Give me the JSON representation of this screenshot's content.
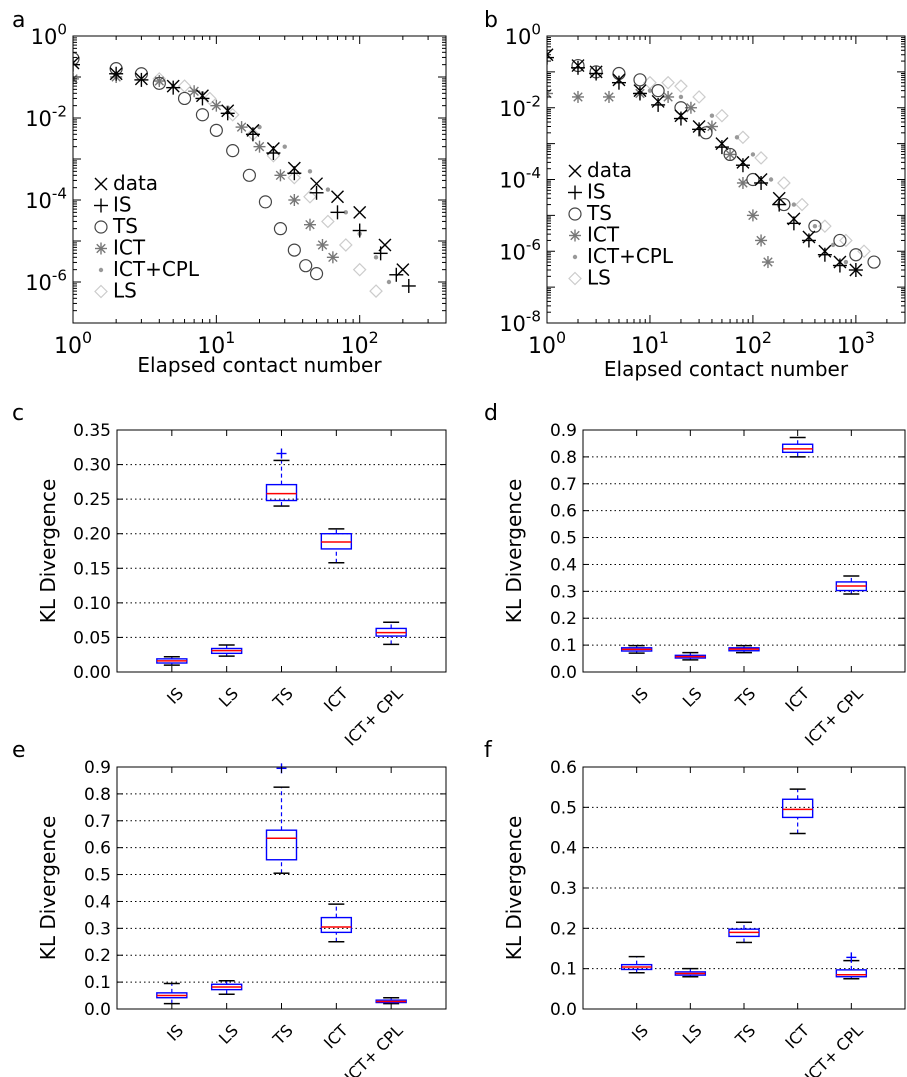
{
  "panel_letters": [
    "a",
    "b",
    "c",
    "d",
    "e",
    "f"
  ],
  "colors": {
    "data": "#000000",
    "IS": "#000000",
    "TS": "#444444",
    "ICT": "#777777",
    "ICT+CPL": "#999999",
    "LS": "#cccccc",
    "box": "#0000ff",
    "median": "#ff0000",
    "grid": "#000000"
  },
  "chart_data": [
    {
      "id": "a",
      "type": "scatter",
      "xlabel": "Elapsed contact number",
      "ylabel": "",
      "xscale": "log",
      "yscale": "log",
      "xlim": [
        1,
        400
      ],
      "ylim": [
        1e-07,
        1
      ],
      "xticks": [
        {
          "value": 1,
          "base": "10",
          "exp": "0"
        },
        {
          "value": 10,
          "base": "10",
          "exp": "1"
        },
        {
          "value": 100,
          "base": "10",
          "exp": "2"
        }
      ],
      "yticks": [
        {
          "value": 1,
          "base": "10",
          "exp": "0"
        },
        {
          "value": 0.01,
          "base": "10",
          "exp": "-2"
        },
        {
          "value": 0.0001,
          "base": "10",
          "exp": "-4"
        },
        {
          "value": 1e-06,
          "base": "10",
          "exp": "-6"
        }
      ],
      "legend_position": "bottom-left",
      "legend": [
        {
          "label": "data",
          "marker": "x"
        },
        {
          "label": "IS",
          "marker": "+"
        },
        {
          "label": "TS",
          "marker": "circle"
        },
        {
          "label": "ICT",
          "marker": "star"
        },
        {
          "label": "ICT+CPL",
          "marker": "dot"
        },
        {
          "label": "LS",
          "marker": "diamond"
        }
      ],
      "series": [
        {
          "name": "data",
          "marker": "x",
          "x": [
            1,
            2,
            3,
            5,
            8,
            12,
            18,
            25,
            35,
            50,
            70,
            100,
            150,
            200
          ],
          "y": [
            0.22,
            0.12,
            0.09,
            0.06,
            0.035,
            0.015,
            0.005,
            0.0018,
            0.0006,
            0.00025,
            0.00012,
            5e-05,
            8e-06,
            2e-06
          ]
        },
        {
          "name": "IS",
          "marker": "+",
          "x": [
            1,
            2,
            3,
            5,
            8,
            12,
            18,
            25,
            35,
            50,
            70,
            100,
            140,
            180,
            220
          ],
          "y": [
            0.2,
            0.12,
            0.085,
            0.055,
            0.03,
            0.013,
            0.004,
            0.0014,
            0.00045,
            0.00015,
            5e-05,
            1.8e-05,
            5e-06,
            1.5e-06,
            8e-07
          ]
        },
        {
          "name": "TS",
          "marker": "circle",
          "x": [
            1,
            2,
            3,
            4,
            6,
            8,
            10,
            13,
            17,
            22,
            28,
            35,
            42,
            50
          ],
          "y": [
            0.28,
            0.16,
            0.12,
            0.07,
            0.03,
            0.012,
            0.005,
            0.0016,
            0.0004,
            9e-05,
            2e-05,
            6e-06,
            2.5e-06,
            1.6e-06
          ]
        },
        {
          "name": "ICT",
          "marker": "star",
          "x": [
            1,
            2,
            4,
            7,
            10,
            15,
            20,
            28,
            35,
            45,
            55,
            65
          ],
          "y": [
            0.09,
            0.1,
            0.08,
            0.045,
            0.02,
            0.006,
            0.002,
            0.0004,
            0.0001,
            2.5e-05,
            8e-06,
            4e-06
          ]
        },
        {
          "name": "ICT+CPL",
          "marker": "dot",
          "x": [
            5,
            8,
            12,
            20,
            30,
            45,
            60,
            80,
            100,
            130,
            160
          ],
          "y": [
            0.06,
            0.04,
            0.018,
            0.006,
            0.002,
            0.0005,
            0.00018,
            5e-05,
            1.5e-05,
            4e-06,
            1e-06
          ]
        },
        {
          "name": "LS",
          "marker": "diamond",
          "x": [
            4,
            6,
            9,
            13,
            18,
            25,
            35,
            45,
            60,
            80,
            100,
            130
          ],
          "y": [
            0.09,
            0.06,
            0.03,
            0.012,
            0.004,
            0.0012,
            0.00035,
            0.00012,
            3e-05,
            8e-06,
            2e-06,
            6e-07
          ]
        }
      ]
    },
    {
      "id": "b",
      "type": "scatter",
      "xlabel": "Elapsed contact number",
      "ylabel": "",
      "xscale": "log",
      "yscale": "log",
      "xlim": [
        1,
        3000
      ],
      "ylim": [
        1e-08,
        1
      ],
      "xticks": [
        {
          "value": 1,
          "base": "10",
          "exp": "0"
        },
        {
          "value": 10,
          "base": "10",
          "exp": "1"
        },
        {
          "value": 100,
          "base": "10",
          "exp": "2"
        },
        {
          "value": 1000,
          "base": "10",
          "exp": "3"
        }
      ],
      "yticks": [
        {
          "value": 1,
          "base": "10",
          "exp": "0"
        },
        {
          "value": 0.01,
          "base": "10",
          "exp": "-2"
        },
        {
          "value": 0.0001,
          "base": "10",
          "exp": "-4"
        },
        {
          "value": 1e-06,
          "base": "10",
          "exp": "-6"
        },
        {
          "value": 1e-08,
          "base": "10",
          "exp": "-8"
        }
      ],
      "legend_position": "bottom-left",
      "legend": [
        {
          "label": "data",
          "marker": "x"
        },
        {
          "label": "IS",
          "marker": "+"
        },
        {
          "label": "TS",
          "marker": "circle"
        },
        {
          "label": "ICT",
          "marker": "star"
        },
        {
          "label": "ICT+CPL",
          "marker": "dot"
        },
        {
          "label": "LS",
          "marker": "diamond"
        }
      ],
      "series": [
        {
          "name": "data",
          "marker": "x",
          "x": [
            1,
            2,
            3,
            5,
            8,
            12,
            20,
            30,
            50,
            80,
            120,
            180,
            250,
            350,
            500,
            700,
            1000
          ],
          "y": [
            0.3,
            0.15,
            0.1,
            0.06,
            0.03,
            0.015,
            0.006,
            0.003,
            0.001,
            0.0003,
            0.0001,
            3e-05,
            8e-06,
            2.5e-06,
            1e-06,
            5e-07,
            3e-07
          ]
        },
        {
          "name": "IS",
          "marker": "+",
          "x": [
            1,
            2,
            3,
            5,
            8,
            12,
            20,
            30,
            50,
            80,
            120,
            180,
            250,
            350,
            500,
            700,
            1000
          ],
          "y": [
            0.25,
            0.13,
            0.09,
            0.05,
            0.025,
            0.012,
            0.005,
            0.0025,
            0.0008,
            0.00025,
            8e-05,
            2e-05,
            6e-06,
            2e-06,
            8e-07,
            4e-07,
            3e-07
          ]
        },
        {
          "name": "TS",
          "marker": "circle",
          "x": [
            2,
            3,
            5,
            8,
            12,
            20,
            35,
            60,
            100,
            200,
            400,
            700,
            1000,
            1500
          ],
          "y": [
            0.15,
            0.1,
            0.09,
            0.06,
            0.03,
            0.01,
            0.002,
            0.0005,
            0.0001,
            2e-05,
            5e-06,
            2e-06,
            8e-07,
            5e-07
          ]
        },
        {
          "name": "ICT",
          "marker": "star",
          "x": [
            1,
            2,
            4,
            8,
            15,
            25,
            40,
            60,
            80,
            100,
            120,
            140
          ],
          "y": [
            0.025,
            0.02,
            0.02,
            0.025,
            0.02,
            0.01,
            0.003,
            0.0005,
            8e-05,
            1e-05,
            2e-06,
            5e-07
          ]
        },
        {
          "name": "ICT+CPL",
          "marker": "dot",
          "x": [
            10,
            20,
            40,
            70,
            100,
            150,
            250,
            400,
            600,
            800
          ],
          "y": [
            0.03,
            0.02,
            0.006,
            0.0015,
            0.0005,
            0.0001,
            2e-05,
            5e-06,
            1.5e-06,
            5e-07
          ]
        },
        {
          "name": "LS",
          "marker": "diamond",
          "x": [
            10,
            15,
            20,
            30,
            50,
            80,
            120,
            200,
            300,
            500,
            800,
            1200
          ],
          "y": [
            0.05,
            0.05,
            0.04,
            0.02,
            0.006,
            0.0015,
            0.0004,
            8e-05,
            2e-05,
            5e-06,
            2e-06,
            1e-06
          ]
        }
      ]
    },
    {
      "id": "c",
      "type": "box",
      "ylabel": "KL Divergence",
      "ylim": [
        0,
        0.35
      ],
      "yticks": [
        "0.00",
        "0.05",
        "0.10",
        "0.15",
        "0.20",
        "0.25",
        "0.30",
        "0.35"
      ],
      "grid": "horizontal dotted",
      "categories": [
        "IS",
        "LS",
        "TS",
        "ICT",
        "ICT+ CPL"
      ],
      "boxes": [
        {
          "min": 0.01,
          "q1": 0.013,
          "median": 0.016,
          "q3": 0.019,
          "max": 0.022,
          "fliers": []
        },
        {
          "min": 0.023,
          "q1": 0.027,
          "median": 0.031,
          "q3": 0.034,
          "max": 0.039,
          "fliers": []
        },
        {
          "min": 0.24,
          "q1": 0.248,
          "median": 0.258,
          "q3": 0.271,
          "max": 0.306,
          "fliers": [
            0.316
          ]
        },
        {
          "min": 0.158,
          "q1": 0.178,
          "median": 0.188,
          "q3": 0.2,
          "max": 0.207,
          "fliers": []
        },
        {
          "min": 0.04,
          "q1": 0.052,
          "median": 0.057,
          "q3": 0.063,
          "max": 0.072,
          "fliers": []
        }
      ]
    },
    {
      "id": "d",
      "type": "box",
      "ylabel": "KL Divergence",
      "ylim": [
        0,
        0.9
      ],
      "yticks": [
        "0.0",
        "0.1",
        "0.2",
        "0.3",
        "0.4",
        "0.5",
        "0.6",
        "0.7",
        "0.8",
        "0.9"
      ],
      "grid": "horizontal dotted",
      "categories": [
        "IS",
        "LS",
        "TS",
        "ICT",
        "ICT+ CPL"
      ],
      "boxes": [
        {
          "min": 0.07,
          "q1": 0.078,
          "median": 0.084,
          "q3": 0.09,
          "max": 0.098,
          "fliers": []
        },
        {
          "min": 0.045,
          "q1": 0.052,
          "median": 0.057,
          "q3": 0.062,
          "max": 0.072,
          "fliers": []
        },
        {
          "min": 0.072,
          "q1": 0.079,
          "median": 0.085,
          "q3": 0.09,
          "max": 0.098,
          "fliers": []
        },
        {
          "min": 0.8,
          "q1": 0.817,
          "median": 0.83,
          "q3": 0.847,
          "max": 0.872,
          "fliers": []
        },
        {
          "min": 0.29,
          "q1": 0.303,
          "median": 0.32,
          "q3": 0.335,
          "max": 0.357,
          "fliers": []
        }
      ]
    },
    {
      "id": "e",
      "type": "box",
      "ylabel": "KL Divergence",
      "ylim": [
        0,
        0.9
      ],
      "yticks": [
        "0.0",
        "0.1",
        "0.2",
        "0.3",
        "0.4",
        "0.5",
        "0.6",
        "0.7",
        "0.8",
        "0.9"
      ],
      "grid": "horizontal dotted",
      "categories": [
        "IS",
        "LS",
        "TS",
        "ICT",
        "ICT+ CPL"
      ],
      "boxes": [
        {
          "min": 0.02,
          "q1": 0.042,
          "median": 0.05,
          "q3": 0.06,
          "max": 0.095,
          "fliers": []
        },
        {
          "min": 0.055,
          "q1": 0.072,
          "median": 0.082,
          "q3": 0.092,
          "max": 0.105,
          "fliers": []
        },
        {
          "min": 0.505,
          "q1": 0.555,
          "median": 0.635,
          "q3": 0.665,
          "max": 0.825,
          "fliers": [
            0.895
          ]
        },
        {
          "min": 0.25,
          "q1": 0.285,
          "median": 0.305,
          "q3": 0.34,
          "max": 0.39,
          "fliers": []
        },
        {
          "min": 0.02,
          "q1": 0.024,
          "median": 0.028,
          "q3": 0.033,
          "max": 0.042,
          "fliers": []
        }
      ]
    },
    {
      "id": "f",
      "type": "box",
      "ylabel": "KL Divergence",
      "ylim": [
        0,
        0.6
      ],
      "yticks": [
        "0.0",
        "0.1",
        "0.2",
        "0.3",
        "0.4",
        "0.5",
        "0.6"
      ],
      "grid": "horizontal dotted",
      "categories": [
        "IS",
        "LS",
        "TS",
        "ICT",
        "ICT+ CPL"
      ],
      "boxes": [
        {
          "min": 0.09,
          "q1": 0.098,
          "median": 0.104,
          "q3": 0.11,
          "max": 0.13,
          "fliers": []
        },
        {
          "min": 0.08,
          "q1": 0.084,
          "median": 0.088,
          "q3": 0.092,
          "max": 0.1,
          "fliers": []
        },
        {
          "min": 0.165,
          "q1": 0.18,
          "median": 0.19,
          "q3": 0.198,
          "max": 0.215,
          "fliers": []
        },
        {
          "min": 0.435,
          "q1": 0.475,
          "median": 0.495,
          "q3": 0.52,
          "max": 0.545,
          "fliers": []
        },
        {
          "min": 0.075,
          "q1": 0.08,
          "median": 0.085,
          "q3": 0.097,
          "max": 0.12,
          "fliers": [
            0.128
          ]
        }
      ]
    }
  ]
}
